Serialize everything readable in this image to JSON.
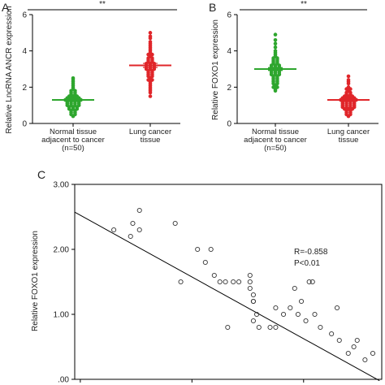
{
  "chart_data": [
    {
      "panel_label": "A",
      "type": "scatter",
      "ylabel": "Relative LncRNA ANCR expression",
      "ylim": [
        0,
        6
      ],
      "yticks": [
        "0",
        "2",
        "4",
        "6"
      ],
      "categories": [
        {
          "lines": [
            "Normal tissue",
            "adjacent to cancer",
            "(n=50)"
          ]
        },
        {
          "lines": [
            "Lung cancer",
            "tissue"
          ]
        }
      ],
      "significance": "**",
      "series": [
        {
          "color": "#2ea62e",
          "mean": 1.3,
          "sem": 0.07,
          "values": [
            2.5,
            2.3,
            2.4,
            2.2,
            2.0,
            2.1,
            1.9,
            1.8,
            1.8,
            1.7,
            1.7,
            1.6,
            1.6,
            1.5,
            1.5,
            1.5,
            1.4,
            1.4,
            1.4,
            1.4,
            1.3,
            1.3,
            1.3,
            1.3,
            1.3,
            1.2,
            1.2,
            1.2,
            1.2,
            1.1,
            1.1,
            1.1,
            1.1,
            1.0,
            1.0,
            1.0,
            1.0,
            0.9,
            0.9,
            0.9,
            0.8,
            0.8,
            0.8,
            0.7,
            0.7,
            0.6,
            0.6,
            0.5,
            0.5,
            0.4
          ]
        },
        {
          "color": "#e0262a",
          "mean": 3.2,
          "sem": 0.11,
          "values": [
            5.0,
            4.8,
            4.7,
            4.5,
            4.4,
            4.3,
            4.2,
            4.1,
            4.0,
            3.9,
            3.8,
            3.8,
            3.7,
            3.6,
            3.6,
            3.5,
            3.5,
            3.4,
            3.4,
            3.3,
            3.3,
            3.3,
            3.2,
            3.2,
            3.2,
            3.1,
            3.1,
            3.1,
            3.0,
            3.0,
            3.0,
            2.9,
            2.9,
            2.8,
            2.8,
            2.7,
            2.7,
            2.6,
            2.6,
            2.5,
            2.4,
            2.4,
            2.3,
            2.2,
            2.1,
            2.0,
            1.9,
            1.8,
            1.7,
            1.5
          ]
        }
      ]
    },
    {
      "panel_label": "B",
      "type": "scatter",
      "ylabel": "Relative FOXO1 expression",
      "ylim": [
        0,
        6
      ],
      "yticks": [
        "0",
        "2",
        "4",
        "6"
      ],
      "categories": [
        {
          "lines": [
            "Normal tissue",
            "adjacent to cancer",
            "(n=50)"
          ]
        },
        {
          "lines": [
            "Lung cancer",
            "tissue"
          ]
        }
      ],
      "significance": "**",
      "series": [
        {
          "color": "#2ea62e",
          "mean": 3.0,
          "sem": 0.08,
          "values": [
            4.9,
            4.6,
            4.4,
            4.2,
            4.0,
            3.9,
            3.8,
            3.7,
            3.6,
            3.6,
            3.5,
            3.5,
            3.4,
            3.4,
            3.3,
            3.3,
            3.2,
            3.2,
            3.2,
            3.1,
            3.1,
            3.1,
            3.0,
            3.0,
            3.0,
            3.0,
            2.9,
            2.9,
            2.9,
            2.8,
            2.8,
            2.8,
            2.7,
            2.7,
            2.7,
            2.6,
            2.6,
            2.5,
            2.5,
            2.4,
            2.4,
            2.3,
            2.3,
            2.2,
            2.2,
            2.1,
            2.0,
            2.0,
            1.9,
            1.8
          ]
        },
        {
          "color": "#e0262a",
          "mean": 1.3,
          "sem": 0.06,
          "values": [
            2.6,
            2.4,
            2.3,
            2.2,
            2.0,
            1.9,
            1.9,
            1.8,
            1.7,
            1.7,
            1.6,
            1.6,
            1.5,
            1.5,
            1.5,
            1.4,
            1.4,
            1.4,
            1.4,
            1.3,
            1.3,
            1.3,
            1.3,
            1.3,
            1.2,
            1.2,
            1.2,
            1.2,
            1.1,
            1.1,
            1.1,
            1.1,
            1.0,
            1.0,
            1.0,
            1.0,
            0.9,
            0.9,
            0.9,
            0.9,
            0.8,
            0.8,
            0.8,
            0.7,
            0.7,
            0.6,
            0.6,
            0.5,
            0.5,
            0.4
          ]
        }
      ]
    },
    {
      "panel_label": "C",
      "type": "scatter",
      "ylabel": "Relative FOXO1 expression",
      "ylim": [
        0,
        3
      ],
      "yticks": [
        ".00",
        "1.00",
        "2.00",
        "3.00"
      ],
      "annotations": [
        "R=-0.858",
        "P<0.01"
      ],
      "regression": {
        "slope": -0.95,
        "intercept": 3.95
      },
      "xlim": [
        1.45,
        4.2
      ],
      "points": [
        {
          "x": 1.8,
          "y": 2.3
        },
        {
          "x": 1.95,
          "y": 2.2
        },
        {
          "x": 1.97,
          "y": 2.4
        },
        {
          "x": 2.03,
          "y": 2.6
        },
        {
          "x": 2.03,
          "y": 2.3
        },
        {
          "x": 2.35,
          "y": 2.4
        },
        {
          "x": 2.4,
          "y": 1.5
        },
        {
          "x": 2.55,
          "y": 2.0
        },
        {
          "x": 2.62,
          "y": 1.8
        },
        {
          "x": 2.67,
          "y": 2.0
        },
        {
          "x": 2.7,
          "y": 1.6
        },
        {
          "x": 2.75,
          "y": 1.5
        },
        {
          "x": 2.8,
          "y": 1.5
        },
        {
          "x": 2.82,
          "y": 0.8
        },
        {
          "x": 2.87,
          "y": 1.5
        },
        {
          "x": 2.92,
          "y": 1.5
        },
        {
          "x": 3.02,
          "y": 1.5
        },
        {
          "x": 3.02,
          "y": 1.6
        },
        {
          "x": 3.02,
          "y": 1.4
        },
        {
          "x": 3.05,
          "y": 1.3
        },
        {
          "x": 3.05,
          "y": 1.2
        },
        {
          "x": 3.05,
          "y": 1.2
        },
        {
          "x": 3.05,
          "y": 0.9
        },
        {
          "x": 3.08,
          "y": 1.0
        },
        {
          "x": 3.1,
          "y": 0.8
        },
        {
          "x": 3.2,
          "y": 0.8
        },
        {
          "x": 3.25,
          "y": 1.1
        },
        {
          "x": 3.25,
          "y": 0.8
        },
        {
          "x": 3.32,
          "y": 1.0
        },
        {
          "x": 3.38,
          "y": 1.1
        },
        {
          "x": 3.42,
          "y": 1.4
        },
        {
          "x": 3.45,
          "y": 1.0
        },
        {
          "x": 3.48,
          "y": 1.2
        },
        {
          "x": 3.52,
          "y": 0.9
        },
        {
          "x": 3.55,
          "y": 1.5
        },
        {
          "x": 3.58,
          "y": 1.5
        },
        {
          "x": 3.6,
          "y": 1.0
        },
        {
          "x": 3.65,
          "y": 0.8
        },
        {
          "x": 3.75,
          "y": 0.7
        },
        {
          "x": 3.8,
          "y": 1.1
        },
        {
          "x": 3.82,
          "y": 0.6
        },
        {
          "x": 3.9,
          "y": 0.4
        },
        {
          "x": 3.95,
          "y": 0.5
        },
        {
          "x": 3.98,
          "y": 0.6
        },
        {
          "x": 4.05,
          "y": 0.3
        },
        {
          "x": 4.12,
          "y": 0.4
        }
      ]
    }
  ]
}
